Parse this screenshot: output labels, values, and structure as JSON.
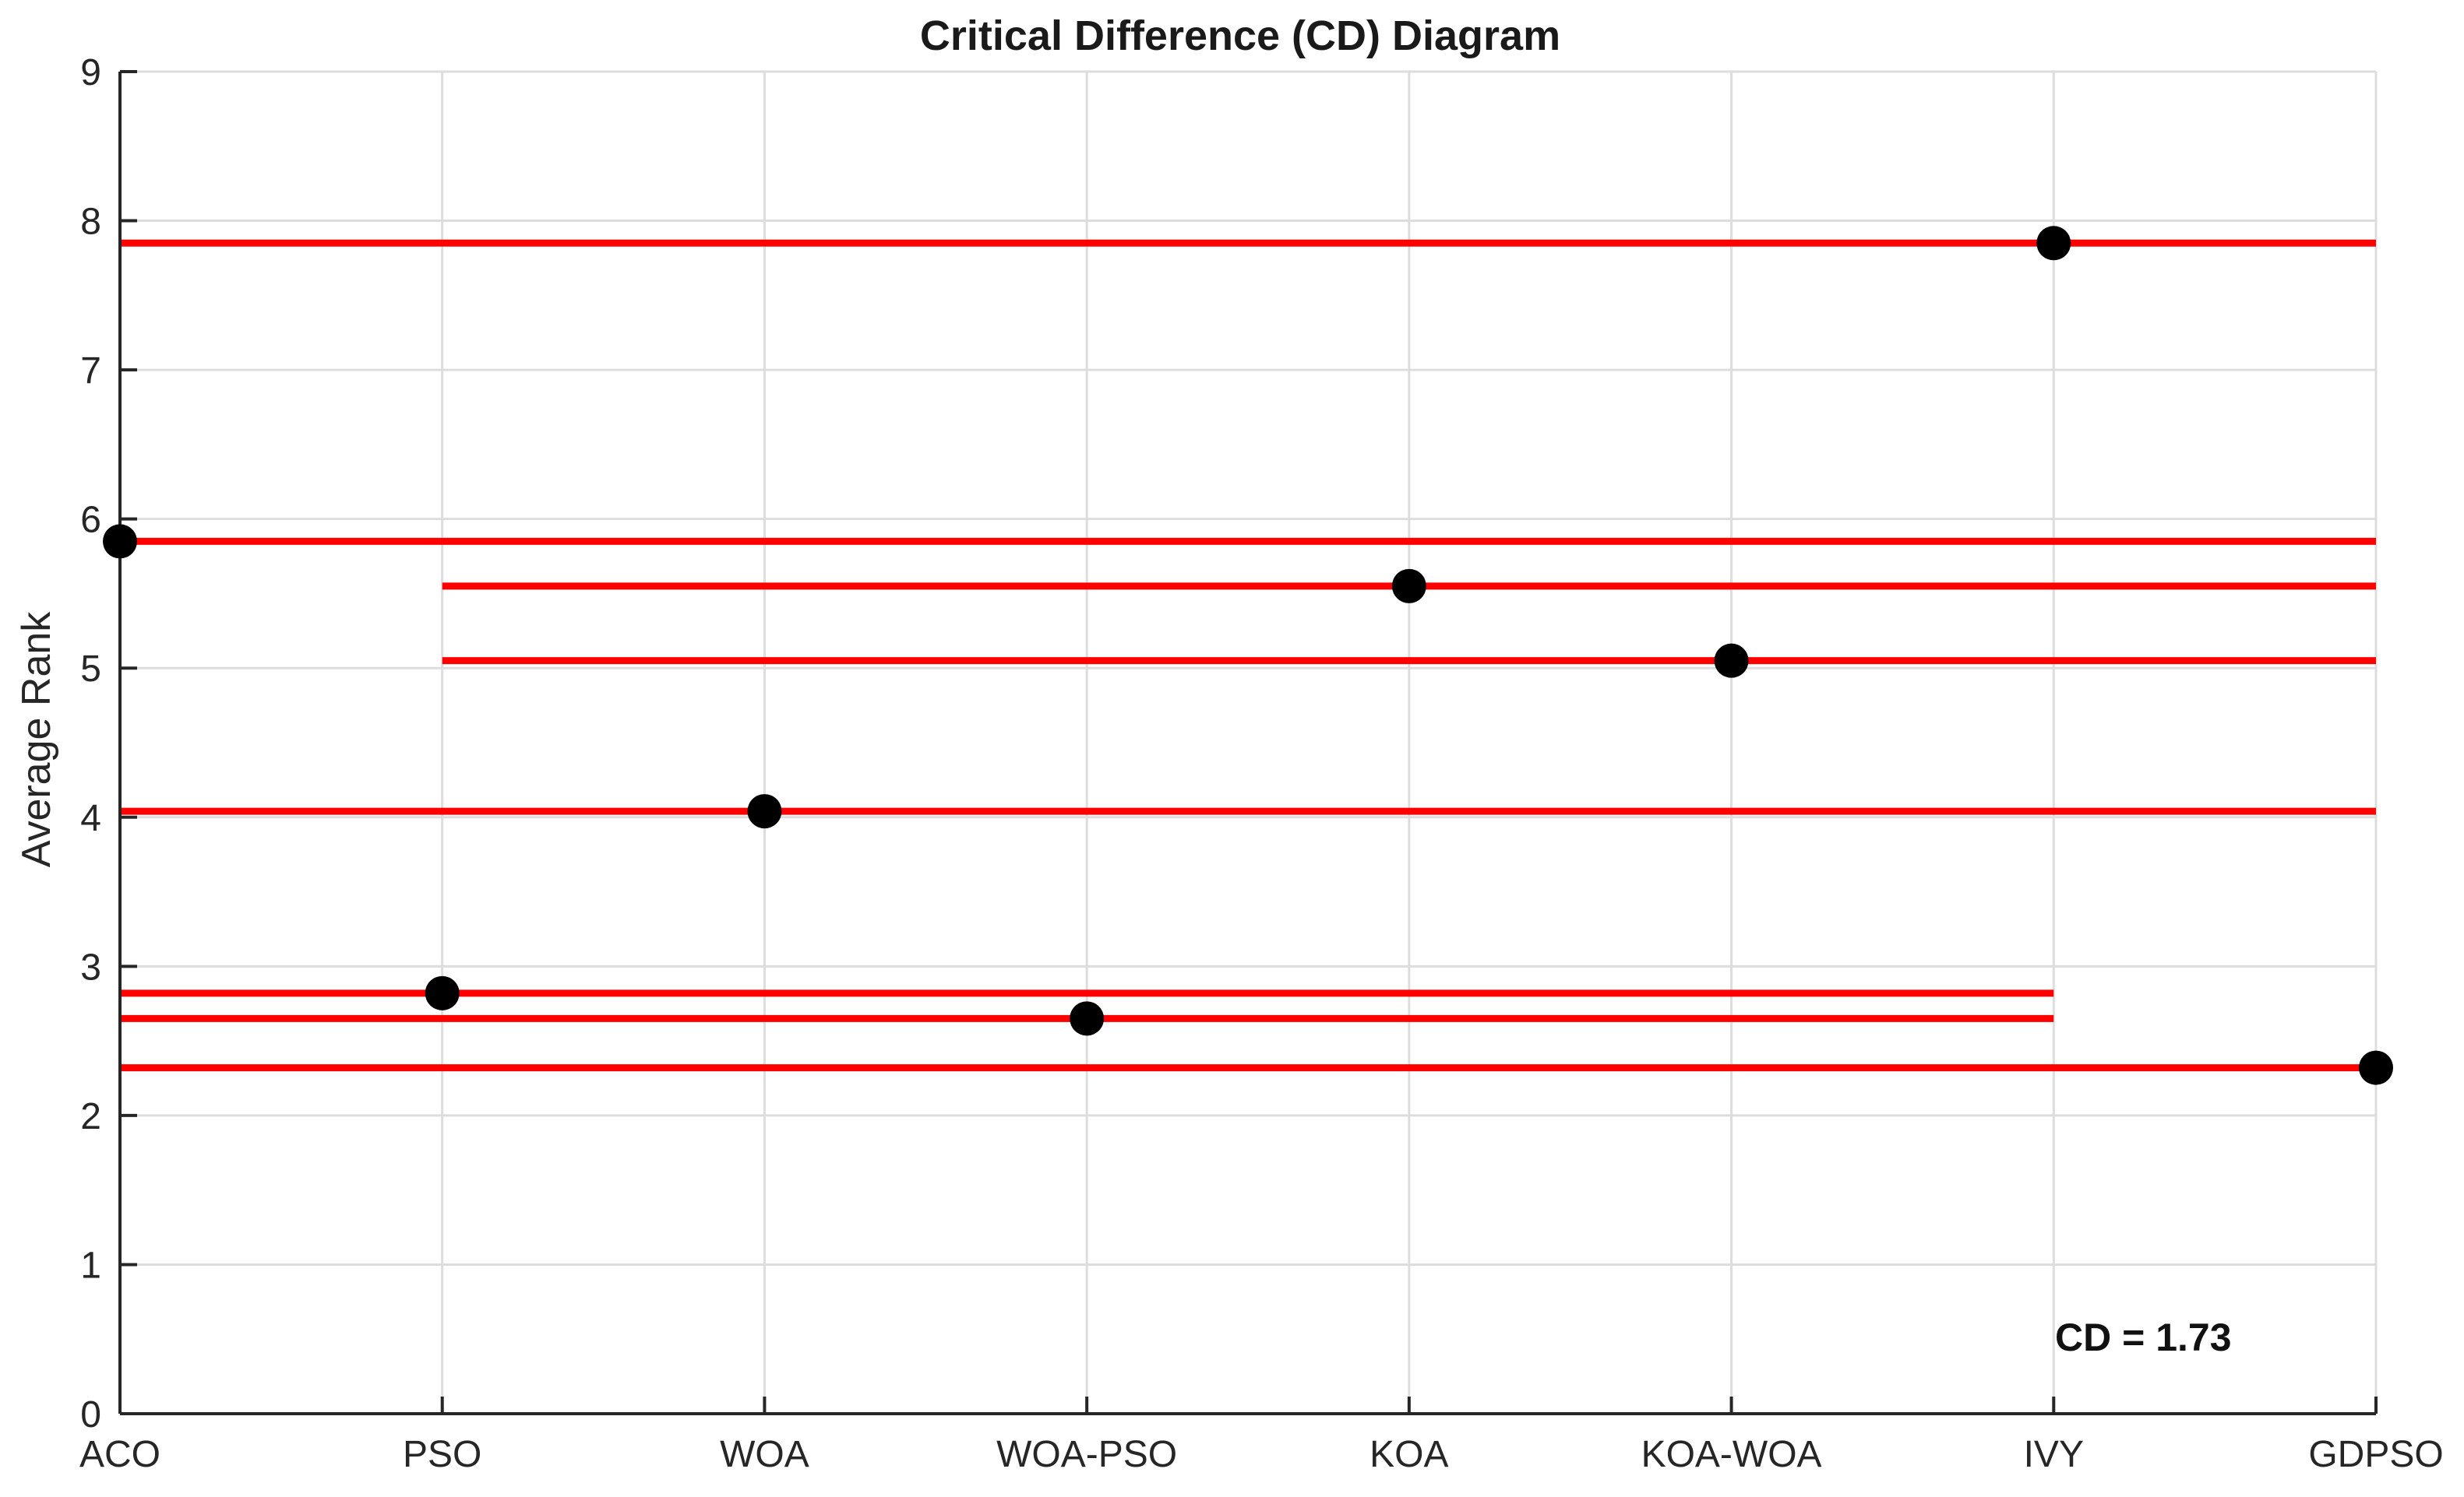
{
  "chart_data": {
    "type": "scatter",
    "title": "Critical Difference (CD) Diagram",
    "xlabel": "",
    "ylabel": "Average Rank",
    "categories": [
      "ACO",
      "PSO",
      "WOA",
      "WOA-PSO",
      "KOA",
      "KOA-WOA",
      "IVY",
      "GDPSO"
    ],
    "values": [
      5.85,
      2.82,
      4.04,
      2.65,
      5.55,
      5.05,
      7.85,
      2.32
    ],
    "ylim": [
      0,
      9
    ],
    "yticks": [
      "0",
      "1",
      "2",
      "3",
      "4",
      "5",
      "6",
      "7",
      "8",
      "9"
    ],
    "grid": true,
    "cd_bars": [
      {
        "y": 7.85,
        "from": "ACO",
        "to": "GDPSO"
      },
      {
        "y": 5.85,
        "from": "ACO",
        "to": "GDPSO"
      },
      {
        "y": 5.55,
        "from": "PSO",
        "to": "GDPSO"
      },
      {
        "y": 5.05,
        "from": "PSO",
        "to": "GDPSO"
      },
      {
        "y": 4.04,
        "from": "ACO",
        "to": "GDPSO"
      },
      {
        "y": 2.82,
        "from": "ACO",
        "to": "IVY"
      },
      {
        "y": 2.65,
        "from": "ACO",
        "to": "IVY"
      },
      {
        "y": 2.32,
        "from": "ACO",
        "to": "GDPSO"
      }
    ],
    "annotation": "CD = 1.73",
    "colors": {
      "bar": "#ff0000",
      "point": "#000000",
      "grid": "#dddddd",
      "axis": "#262626"
    }
  }
}
